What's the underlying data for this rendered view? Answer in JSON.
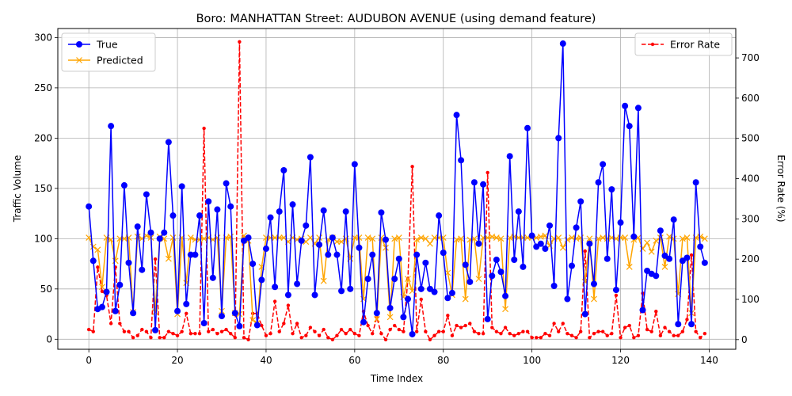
{
  "chart_data": {
    "type": "line",
    "title": "Boro: MANHATTAN Street: AUDUBON AVENUE (using demand feature)",
    "xlabel": "Time Index",
    "ylabel": "Traffic Volume",
    "ylabel_right": "Error Rate (%)",
    "xlim": [
      -7,
      146
    ],
    "ylim": [
      -10,
      309
    ],
    "ylim_right": [
      -24,
      773
    ],
    "xticks": [
      0,
      20,
      40,
      60,
      80,
      100,
      120,
      140
    ],
    "yticks": [
      0,
      50,
      100,
      150,
      200,
      250,
      300
    ],
    "yticks_right": [
      0,
      100,
      200,
      300,
      400,
      500,
      600,
      700
    ],
    "grid": true,
    "legend_left_position": "top-left",
    "legend_right_position": "top-right",
    "x": [
      0,
      1,
      2,
      3,
      4,
      5,
      6,
      7,
      8,
      9,
      10,
      11,
      12,
      13,
      14,
      15,
      16,
      17,
      18,
      19,
      20,
      21,
      22,
      23,
      24,
      25,
      26,
      27,
      28,
      29,
      30,
      31,
      32,
      33,
      34,
      35,
      36,
      37,
      38,
      39,
      40,
      41,
      42,
      43,
      44,
      45,
      46,
      47,
      48,
      49,
      50,
      51,
      52,
      53,
      54,
      55,
      56,
      57,
      58,
      59,
      60,
      61,
      62,
      63,
      64,
      65,
      66,
      67,
      68,
      69,
      70,
      71,
      72,
      73,
      74,
      75,
      76,
      77,
      78,
      79,
      80,
      81,
      82,
      83,
      84,
      85,
      86,
      87,
      88,
      89,
      90,
      91,
      92,
      93,
      94,
      95,
      96,
      97,
      98,
      99,
      100,
      101,
      102,
      103,
      104,
      105,
      106,
      107,
      108,
      109,
      110,
      111,
      112,
      113,
      114,
      115,
      116,
      117,
      118,
      119,
      120,
      121,
      122,
      123,
      124,
      125,
      126,
      127,
      128,
      129,
      130,
      131,
      132,
      133,
      134,
      135,
      136,
      137,
      138,
      139
    ],
    "series": [
      {
        "name": "True",
        "axis": "left",
        "color": "#0000ff",
        "marker": "circle",
        "style": "solid",
        "values": [
          132,
          78,
          30,
          32,
          47,
          212,
          28,
          54,
          153,
          76,
          26,
          112,
          69,
          144,
          106,
          9,
          100,
          106,
          196,
          123,
          28,
          152,
          35,
          84,
          84,
          123,
          16,
          137,
          61,
          129,
          23,
          155,
          132,
          26,
          13,
          98,
          101,
          75,
          14,
          59,
          90,
          121,
          52,
          127,
          168,
          44,
          134,
          55,
          98,
          113,
          181,
          44,
          94,
          128,
          84,
          101,
          84,
          48,
          127,
          50,
          174,
          91,
          17,
          60,
          84,
          26,
          126,
          99,
          31,
          60,
          80,
          22,
          40,
          5,
          84,
          50,
          76,
          50,
          47,
          123,
          86,
          41,
          46,
          223,
          178,
          74,
          57,
          156,
          95,
          154,
          20,
          63,
          79,
          67,
          43,
          182,
          79,
          127,
          72,
          210,
          103,
          92,
          95,
          90,
          113,
          53,
          200,
          294,
          40,
          73,
          111,
          137,
          25,
          95,
          55,
          156,
          174,
          80,
          149,
          49,
          116,
          232,
          212,
          102,
          230,
          29,
          68,
          65,
          63,
          108,
          83,
          80,
          119,
          15,
          78,
          81,
          15,
          156,
          92,
          76
        ]
      },
      {
        "name": "Predicted",
        "axis": "left",
        "color": "#ffa500",
        "marker": "x",
        "style": "solid",
        "values": [
          101,
          92,
          89,
          52,
          101,
          99,
          78,
          100,
          100,
          101,
          27,
          102,
          100,
          103,
          101,
          27,
          102,
          100,
          80,
          101,
          25,
          101,
          56,
          101,
          99,
          99,
          100,
          101,
          99,
          101,
          28,
          101,
          102,
          26,
          25,
          103,
          98,
          19,
          16,
          72,
          101,
          101,
          101,
          101,
          101,
          97,
          101,
          99,
          100,
          97,
          101,
          95,
          101,
          58,
          99,
          101,
          97,
          97,
          100,
          80,
          101,
          101,
          40,
          101,
          100,
          20,
          101,
          91,
          22,
          100,
          101,
          42,
          60,
          48,
          99,
          101,
          100,
          95,
          101,
          101,
          101,
          66,
          44,
          99,
          100,
          40,
          99,
          100,
          60,
          101,
          101,
          102,
          101,
          100,
          30,
          101,
          102,
          101,
          101,
          101,
          101,
          101,
          102,
          103,
          93,
          100,
          101,
          91,
          99,
          101,
          100,
          101,
          57,
          100,
          40,
          100,
          101,
          100,
          101,
          100,
          101,
          101,
          72,
          99,
          101,
          90,
          96,
          87,
          98,
          101,
          72,
          102,
          100,
          45,
          100,
          101,
          26,
          101,
          102,
          100
        ]
      },
      {
        "name": "Error Rate",
        "axis": "right",
        "color": "#ff0000",
        "marker": "dot",
        "style": "dashed",
        "values": [
          25,
          20,
          180,
          120,
          110,
          40,
          180,
          40,
          20,
          20,
          5,
          10,
          25,
          20,
          5,
          200,
          5,
          5,
          20,
          15,
          10,
          20,
          65,
          15,
          15,
          15,
          525,
          20,
          25,
          15,
          20,
          25,
          15,
          5,
          740,
          5,
          0,
          65,
          65,
          35,
          10,
          15,
          95,
          20,
          40,
          85,
          15,
          40,
          5,
          10,
          30,
          20,
          10,
          25,
          5,
          0,
          10,
          25,
          15,
          25,
          15,
          10,
          70,
          35,
          15,
          55,
          15,
          0,
          25,
          35,
          25,
          20,
          150,
          430,
          20,
          100,
          20,
          0,
          10,
          20,
          20,
          60,
          10,
          35,
          30,
          35,
          40,
          20,
          15,
          15,
          415,
          30,
          20,
          15,
          30,
          15,
          10,
          15,
          20,
          20,
          5,
          5,
          5,
          15,
          10,
          40,
          20,
          40,
          15,
          10,
          5,
          20,
          220,
          5,
          15,
          20,
          20,
          10,
          15,
          110,
          5,
          30,
          35,
          5,
          10,
          115,
          25,
          20,
          70,
          10,
          30,
          20,
          10,
          10,
          20,
          50,
          210,
          20,
          5,
          15
        ]
      }
    ]
  }
}
